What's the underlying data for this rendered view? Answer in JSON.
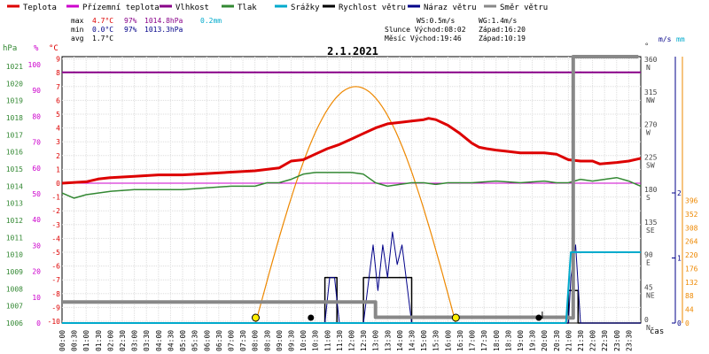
{
  "legend": [
    {
      "label": "Teplota",
      "color": "#dd0000"
    },
    {
      "label": "Přízemní teplota",
      "color": "#cc00cc"
    },
    {
      "label": "Vlhkost",
      "color": "#880088"
    },
    {
      "label": "Tlak",
      "color": "#338833"
    },
    {
      "label": "Srážky",
      "color": "#00aacc"
    },
    {
      "label": "Rychlost větru",
      "color": "#000000"
    },
    {
      "label": "Náraz větru",
      "color": "#000088"
    },
    {
      "label": "Směr větru",
      "color": "#888888"
    }
  ],
  "stats": {
    "max_label": "max",
    "min_label": "min",
    "avg_label": "avg",
    "max_temp": "4.7°C",
    "max_hum": "97%",
    "max_press": "1014.8hPa",
    "max_rain": "0.2mm",
    "min_temp": "0.0°C",
    "min_hum": "97%",
    "min_press": "1013.3hPa",
    "avg_temp": "1.7°C"
  },
  "info": {
    "ws": "WS:0.5m/s",
    "wg": "WG:1.4m/s",
    "slunce": "Slunce Východ:08:02",
    "slunce_zapad": "Západ:16:20",
    "mesic": "Měsíc  Východ:19:46",
    "mesic_zapad": "Západ:10:19"
  },
  "date": "2.1.2021",
  "axis_units": {
    "hpa": "hPa",
    "pct": "%",
    "degc": "°C",
    "deg": "°",
    "ms": "m/s",
    "mm": "mm",
    "cas": "čas"
  },
  "colors": {
    "temp": "#dd0000",
    "humidity": "#880088",
    "pressure": "#338833",
    "rain": "#00aacc",
    "wind": "#000000",
    "gust": "#000088",
    "direction": "#888888",
    "sun": "#ee8800",
    "zero_line": "#cc00cc"
  },
  "chart_data": {
    "type": "line",
    "title": "2.1.2021",
    "x_unit": "hours",
    "x_labels": [
      "00:00",
      "00:30",
      "01:00",
      "01:30",
      "02:00",
      "02:30",
      "03:00",
      "03:30",
      "04:00",
      "04:30",
      "05:00",
      "05:30",
      "06:00",
      "06:30",
      "07:00",
      "07:30",
      "08:00",
      "08:30",
      "09:00",
      "09:30",
      "10:00",
      "10:30",
      "11:00",
      "11:30",
      "12:00",
      "12:30",
      "13:00",
      "13:30",
      "14:00",
      "14:30",
      "15:00",
      "15:30",
      "16:00",
      "16:30",
      "17:00",
      "17:30",
      "18:00",
      "18:30",
      "19:00",
      "19:30",
      "20:00",
      "20:30",
      "21:00",
      "21:30",
      "22:00",
      "22:30",
      "23:00",
      "23:30"
    ],
    "axes": {
      "pressure_hpa": {
        "ticks": [
          1006,
          1007,
          1008,
          1009,
          1010,
          1011,
          1012,
          1013,
          1014,
          1015,
          1016,
          1017,
          1018,
          1019,
          1020,
          1021
        ]
      },
      "humidity_pct": {
        "ticks": [
          0,
          10,
          20,
          30,
          40,
          50,
          60,
          70,
          80,
          90,
          100
        ]
      },
      "temperature_c": {
        "ticks": [
          -10,
          -9,
          -8,
          -7,
          -6,
          -5,
          -4,
          -3,
          -2,
          -1,
          0,
          1,
          2,
          3,
          4,
          5,
          6,
          7,
          8,
          9
        ]
      },
      "direction_deg": {
        "ticks": [
          0,
          45,
          90,
          135,
          180,
          225,
          270,
          315,
          360
        ],
        "labels": [
          "N",
          "NE",
          "E",
          "SE",
          "S",
          "SW",
          "W",
          "NW",
          "N"
        ]
      },
      "wind_ms": {
        "ticks": [
          0,
          1,
          2
        ],
        "scale": [
          0,
          2
        ]
      },
      "rain_mm": {
        "ticks": [
          0,
          44,
          88,
          132,
          176,
          220,
          264,
          308,
          352,
          396
        ]
      }
    },
    "series": [
      {
        "name": "Teplota",
        "axis": "temperature_c",
        "points": [
          [
            0,
            0.0
          ],
          [
            1,
            0.1
          ],
          [
            1.5,
            0.3
          ],
          [
            2,
            0.4
          ],
          [
            3,
            0.5
          ],
          [
            4,
            0.6
          ],
          [
            5,
            0.6
          ],
          [
            6,
            0.7
          ],
          [
            7,
            0.8
          ],
          [
            8,
            0.9
          ],
          [
            9,
            1.1
          ],
          [
            9.5,
            1.6
          ],
          [
            10,
            1.7
          ],
          [
            10.5,
            2.1
          ],
          [
            11,
            2.5
          ],
          [
            11.5,
            2.8
          ],
          [
            12,
            3.2
          ],
          [
            12.5,
            3.6
          ],
          [
            13,
            4.0
          ],
          [
            13.5,
            4.3
          ],
          [
            14,
            4.4
          ],
          [
            14.5,
            4.5
          ],
          [
            15,
            4.6
          ],
          [
            15.2,
            4.7
          ],
          [
            15.5,
            4.6
          ],
          [
            16,
            4.2
          ],
          [
            16.5,
            3.6
          ],
          [
            17,
            2.9
          ],
          [
            17.3,
            2.6
          ],
          [
            17.6,
            2.5
          ],
          [
            18,
            2.4
          ],
          [
            18.5,
            2.3
          ],
          [
            19,
            2.2
          ],
          [
            20,
            2.2
          ],
          [
            20.5,
            2.1
          ],
          [
            21,
            1.7
          ],
          [
            21.5,
            1.6
          ],
          [
            22,
            1.6
          ],
          [
            22.3,
            1.4
          ],
          [
            23,
            1.5
          ],
          [
            23.5,
            1.6
          ],
          [
            24,
            1.8
          ]
        ]
      },
      {
        "name": "Vlhkost",
        "axis": "humidity_pct",
        "points": [
          [
            0,
            97
          ],
          [
            24,
            97
          ]
        ]
      },
      {
        "name": "Tlak",
        "axis": "pressure_hpa",
        "points": [
          [
            0,
            1013.6
          ],
          [
            0.5,
            1013.3
          ],
          [
            1,
            1013.5
          ],
          [
            1.5,
            1013.6
          ],
          [
            2,
            1013.7
          ],
          [
            3,
            1013.8
          ],
          [
            4,
            1013.8
          ],
          [
            5,
            1013.8
          ],
          [
            6,
            1013.9
          ],
          [
            7,
            1014.0
          ],
          [
            8,
            1014.0
          ],
          [
            8.5,
            1014.2
          ],
          [
            9,
            1014.2
          ],
          [
            9.5,
            1014.4
          ],
          [
            10,
            1014.7
          ],
          [
            10.5,
            1014.8
          ],
          [
            11,
            1014.8
          ],
          [
            11.5,
            1014.8
          ],
          [
            12,
            1014.8
          ],
          [
            12.5,
            1014.7
          ],
          [
            13,
            1014.2
          ],
          [
            13.5,
            1014.0
          ],
          [
            14,
            1014.1
          ],
          [
            14.5,
            1014.2
          ],
          [
            15,
            1014.2
          ],
          [
            15.5,
            1014.1
          ],
          [
            16,
            1014.2
          ],
          [
            17,
            1014.2
          ],
          [
            18,
            1014.3
          ],
          [
            19,
            1014.2
          ],
          [
            20,
            1014.3
          ],
          [
            20.5,
            1014.2
          ],
          [
            21,
            1014.2
          ],
          [
            21.5,
            1014.4
          ],
          [
            22,
            1014.3
          ],
          [
            22.5,
            1014.4
          ],
          [
            23,
            1014.5
          ],
          [
            23.5,
            1014.3
          ],
          [
            24,
            1014.0
          ]
        ]
      },
      {
        "name": "Rychlost větru",
        "axis": "wind_ms",
        "points": [
          [
            0,
            0
          ],
          [
            10.9,
            0
          ],
          [
            10.9,
            0.7
          ],
          [
            11.4,
            0.7
          ],
          [
            11.4,
            0
          ],
          [
            12.5,
            0
          ],
          [
            12.5,
            0.7
          ],
          [
            14.5,
            0.7
          ],
          [
            14.5,
            0
          ],
          [
            21,
            0
          ],
          [
            21,
            0.5
          ],
          [
            21.4,
            0.5
          ],
          [
            21.4,
            0
          ],
          [
            24,
            0
          ]
        ]
      },
      {
        "name": "Náraz větru",
        "axis": "wind_ms",
        "points": [
          [
            0,
            0
          ],
          [
            10.9,
            0
          ],
          [
            11.1,
            0.7
          ],
          [
            11.3,
            0.7
          ],
          [
            11.5,
            0
          ],
          [
            12.5,
            0
          ],
          [
            12.7,
            0.6
          ],
          [
            12.9,
            1.2
          ],
          [
            13.1,
            0.5
          ],
          [
            13.3,
            1.2
          ],
          [
            13.5,
            0.7
          ],
          [
            13.7,
            1.4
          ],
          [
            13.9,
            0.9
          ],
          [
            14.1,
            1.2
          ],
          [
            14.3,
            0.6
          ],
          [
            14.5,
            0
          ],
          [
            21,
            0
          ],
          [
            21.1,
            0.7
          ],
          [
            21.3,
            1.2
          ],
          [
            21.5,
            0
          ],
          [
            24,
            0
          ]
        ]
      },
      {
        "name": "Směr větru",
        "axis": "direction_deg",
        "points": [
          [
            0,
            29
          ],
          [
            13,
            29
          ],
          [
            13,
            8
          ],
          [
            21,
            8
          ],
          [
            21,
            7
          ],
          [
            21.2,
            7
          ],
          [
            21.2,
            378
          ],
          [
            23.9,
            378
          ]
        ]
      },
      {
        "name": "Srážky",
        "axis": "rain_mm",
        "points": [
          [
            0,
            0
          ],
          [
            20.8,
            0
          ],
          [
            20.9,
            1
          ],
          [
            21.1,
            229
          ],
          [
            22.4,
            229
          ],
          [
            24,
            229
          ]
        ]
      }
    ],
    "sun_arc": {
      "rise": 8.03,
      "set": 16.33,
      "peak_temp": 7.0
    },
    "markers": [
      {
        "type": "sunrise",
        "x": 8.03
      },
      {
        "type": "sunset",
        "x": 16.33
      },
      {
        "type": "moonset",
        "x": 10.32
      },
      {
        "type": "moonrise",
        "x": 19.77
      }
    ]
  }
}
